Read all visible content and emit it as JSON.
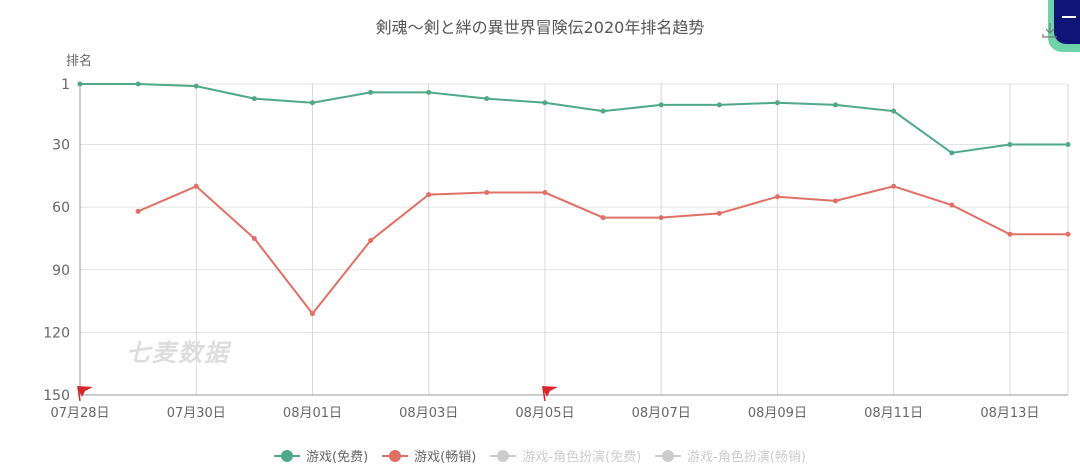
{
  "chart_data": {
    "type": "line",
    "title": "剣魂～剣と絆の異世界冒険伝2020年排名趋势",
    "xlabel": "",
    "ylabel": "排名",
    "y_inverted": true,
    "ylim": [
      1,
      150
    ],
    "y_ticks": [
      "1",
      "30",
      "60",
      "90",
      "120",
      "150"
    ],
    "x_tick_labels": [
      "07月28日",
      "07月30日",
      "08月01日",
      "08月03日",
      "08月05日",
      "08月07日",
      "08月09日",
      "08月11日",
      "08月13日"
    ],
    "categories": [
      "07月28日",
      "07月29日",
      "07月30日",
      "07月31日",
      "08月01日",
      "08月02日",
      "08月03日",
      "08月04日",
      "08月05日",
      "08月06日",
      "08月07日",
      "08月08日",
      "08月09日",
      "08月10日",
      "08月11日",
      "08月12日",
      "08月13日",
      "08月14日"
    ],
    "series": [
      {
        "name": "游戏(免费)",
        "color": "#4fa886",
        "visible": true,
        "values": [
          1,
          1,
          2,
          8,
          10,
          5,
          5,
          8,
          10,
          14,
          11,
          11,
          10,
          11,
          14,
          34,
          30,
          30
        ]
      },
      {
        "name": "游戏(畅销)",
        "color": "#e07065",
        "visible": true,
        "values": [
          null,
          62,
          50,
          75,
          111,
          76,
          54,
          53,
          53,
          65,
          65,
          63,
          55,
          57,
          50,
          59,
          73,
          73
        ]
      },
      {
        "name": "游戏-角色扮演(免费)",
        "color": "#cccccc",
        "visible": false,
        "values": []
      },
      {
        "name": "游戏-角色扮演(畅销)",
        "color": "#cccccc",
        "visible": false,
        "values": []
      }
    ],
    "markers": [
      {
        "type": "flag",
        "date": "07月28日",
        "color": "#d9252a"
      },
      {
        "type": "flag",
        "date": "08月05日",
        "color": "#d9252a"
      }
    ],
    "grid": true,
    "legend_position": "bottom"
  },
  "header": {
    "title": "剣魂～剣と絆の異世界冒険伝2020年排名趋势",
    "y_axis_label": "排名",
    "download_icon": "download-icon"
  },
  "watermark": "七麦数据",
  "legend": [
    {
      "label": "游戏(免费)",
      "color": "#4fa886",
      "active": true
    },
    {
      "label": "游戏(畅销)",
      "color": "#e07065",
      "active": true
    },
    {
      "label": "游戏-角色扮演(免费)",
      "color": "#cccccc",
      "active": false
    },
    {
      "label": "游戏-角色扮演(畅销)",
      "color": "#cccccc",
      "active": false
    }
  ]
}
